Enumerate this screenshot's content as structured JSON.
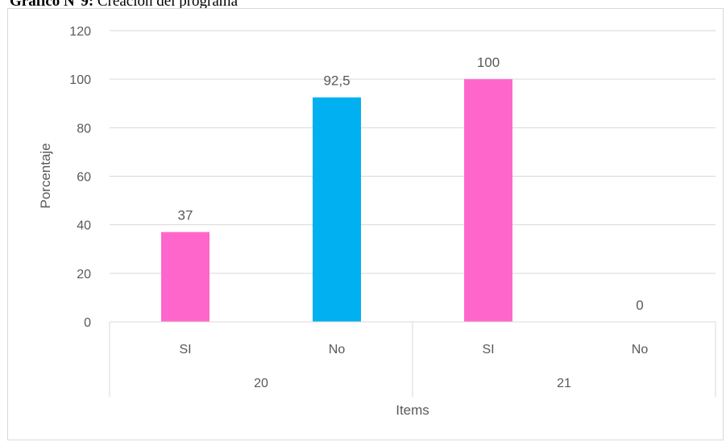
{
  "caption": {
    "label": "Gráfico N°9:",
    "text": "Creación del programa"
  },
  "chart_data": {
    "type": "bar",
    "title": "",
    "ylabel": "Porcentaje",
    "xlabel": "Items",
    "ylim": [
      0,
      120
    ],
    "yticks": [
      0,
      20,
      40,
      60,
      80,
      100,
      120
    ],
    "grid": true,
    "groups": [
      {
        "label": "20",
        "bars": [
          {
            "category": "SI",
            "value": 37,
            "label": "37",
            "color": "#ff66cc"
          },
          {
            "category": "No",
            "value": 92.5,
            "label": "92,5",
            "color": "#00b0f0"
          }
        ]
      },
      {
        "label": "21",
        "bars": [
          {
            "category": "SI",
            "value": 100,
            "label": "100",
            "color": "#ff66cc"
          },
          {
            "category": "No",
            "value": 0,
            "label": "0",
            "color": "#00b0f0"
          }
        ]
      }
    ]
  }
}
